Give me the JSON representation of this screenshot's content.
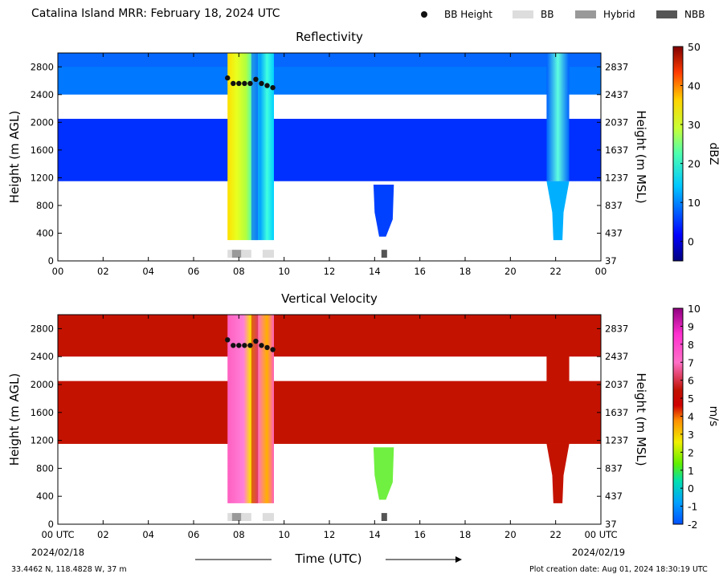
{
  "header": {
    "title": "Catalina Island MRR:  February 18, 2024 UTC",
    "legend": [
      {
        "label": "BB Height",
        "marker": "dot",
        "color": "#111111"
      },
      {
        "label": "BB",
        "marker": "box",
        "color": "#dddddd"
      },
      {
        "label": "Hybrid",
        "marker": "box",
        "color": "#999999"
      },
      {
        "label": "NBB",
        "marker": "box",
        "color": "#555555"
      }
    ]
  },
  "footer": {
    "location": "33.4462 N, 118.4828 W, 37 m",
    "creation": "Plot creation date: Aug 01, 2024 18:30:19 UTC",
    "xlabel": "Time (UTC)",
    "start_date": "2024/02/18",
    "end_date": "2024/02/19"
  },
  "chart_data": [
    {
      "type": "heatmap",
      "title": "Reflectivity",
      "ylabel": "Height (m AGL)",
      "y2label": "Height (m MSL)",
      "xlim": [
        0,
        24
      ],
      "ylim": [
        0,
        3000
      ],
      "yticks": [
        0,
        400,
        800,
        1200,
        1600,
        2000,
        2400,
        2800
      ],
      "y2ticks": [
        "37",
        "437",
        "837",
        "1237",
        "1637",
        "2037",
        "2437",
        "2837"
      ],
      "xticks": [
        "00",
        "02",
        "04",
        "06",
        "08",
        "10",
        "12",
        "14",
        "16",
        "18",
        "20",
        "22",
        "00"
      ],
      "colorbar": {
        "label": "dBZ",
        "min": -5,
        "max": 50,
        "ticks": [
          0,
          10,
          20,
          30,
          40,
          50
        ]
      },
      "bb_height": {
        "x": [
          7.5,
          7.75,
          8.0,
          8.25,
          8.5,
          8.75,
          9.0,
          9.25,
          9.5
        ],
        "y": [
          2640,
          2560,
          2560,
          2560,
          2560,
          2620,
          2560,
          2530,
          2500
        ]
      },
      "bb_classification": [
        {
          "start": 7.5,
          "end": 7.9,
          "class": "BB"
        },
        {
          "start": 7.7,
          "end": 8.2,
          "class": "Hybrid"
        },
        {
          "start": 8.1,
          "end": 8.55,
          "class": "BB"
        },
        {
          "start": 9.05,
          "end": 9.55,
          "class": "BB"
        },
        {
          "start": 14.3,
          "end": 14.55,
          "class": "NBB"
        }
      ]
    },
    {
      "type": "heatmap",
      "title": "Vertical Velocity",
      "ylabel": "Height (m AGL)",
      "y2label": "Height (m MSL)",
      "xlim": [
        0,
        24
      ],
      "ylim": [
        0,
        3000
      ],
      "yticks": [
        0,
        400,
        800,
        1200,
        1600,
        2000,
        2400,
        2800
      ],
      "y2ticks": [
        "37",
        "437",
        "837",
        "1237",
        "1637",
        "2037",
        "2437",
        "2837"
      ],
      "xticks": [
        "00 UTC",
        "02",
        "04",
        "06",
        "08",
        "10",
        "12",
        "14",
        "16",
        "18",
        "20",
        "22",
        "00 UTC"
      ],
      "colorbar": {
        "label": "m/s",
        "min": -2,
        "max": 10,
        "ticks": [
          -2,
          -1,
          0,
          1,
          2,
          3,
          4,
          5,
          6,
          7,
          8,
          9,
          10
        ]
      },
      "bb_height": {
        "x": [
          7.5,
          7.75,
          8.0,
          8.25,
          8.5,
          8.75,
          9.0,
          9.25,
          9.5
        ],
        "y": [
          2640,
          2560,
          2560,
          2560,
          2560,
          2620,
          2560,
          2530,
          2500
        ]
      },
      "bb_classification": [
        {
          "start": 7.5,
          "end": 7.9,
          "class": "BB"
        },
        {
          "start": 7.7,
          "end": 8.2,
          "class": "Hybrid"
        },
        {
          "start": 8.1,
          "end": 8.55,
          "class": "BB"
        },
        {
          "start": 9.05,
          "end": 9.55,
          "class": "BB"
        },
        {
          "start": 14.3,
          "end": 14.55,
          "class": "NBB"
        }
      ]
    }
  ]
}
